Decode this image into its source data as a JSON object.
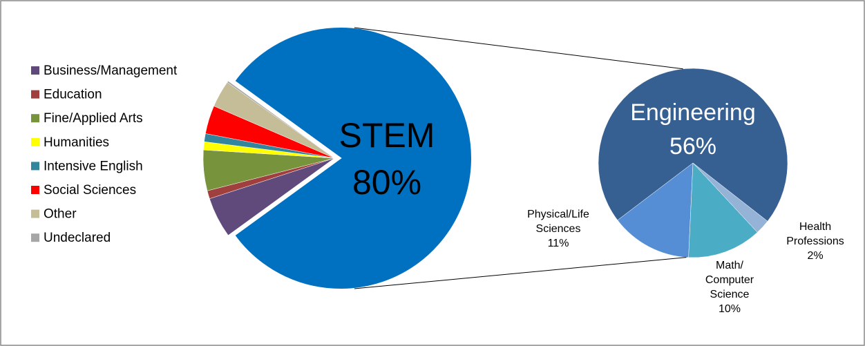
{
  "chart_data": {
    "type": "pie-of-pie",
    "legend": "left",
    "categories": [
      "Business/Management",
      "Education",
      "Fine/Applied Arts",
      "Humanities",
      "Intensive English",
      "Social Sciences",
      "Other",
      "Undeclared"
    ],
    "values": [
      5,
      1,
      5,
      1,
      1,
      3.5,
      3.3,
      0.2
    ],
    "colors": [
      "#604a7b",
      "#a0403e",
      "#77933c",
      "#ffff00",
      "#31859c",
      "#ff0000",
      "#c4bd97",
      "#a6a6a6"
    ],
    "split": {
      "name": "STEM",
      "value": 80,
      "value_label": "80%",
      "color": "#0070c0",
      "categories": [
        "Engineering",
        "Physical/Life Sciences",
        "Math/ Computer Science",
        "Health Professions"
      ],
      "values": [
        56,
        11,
        10,
        2
      ],
      "value_labels": [
        "56%",
        "11%",
        "10%",
        "2%"
      ],
      "colors": [
        "#376092",
        "#558ed5",
        "#4bacc6",
        "#95b3d7"
      ]
    }
  }
}
